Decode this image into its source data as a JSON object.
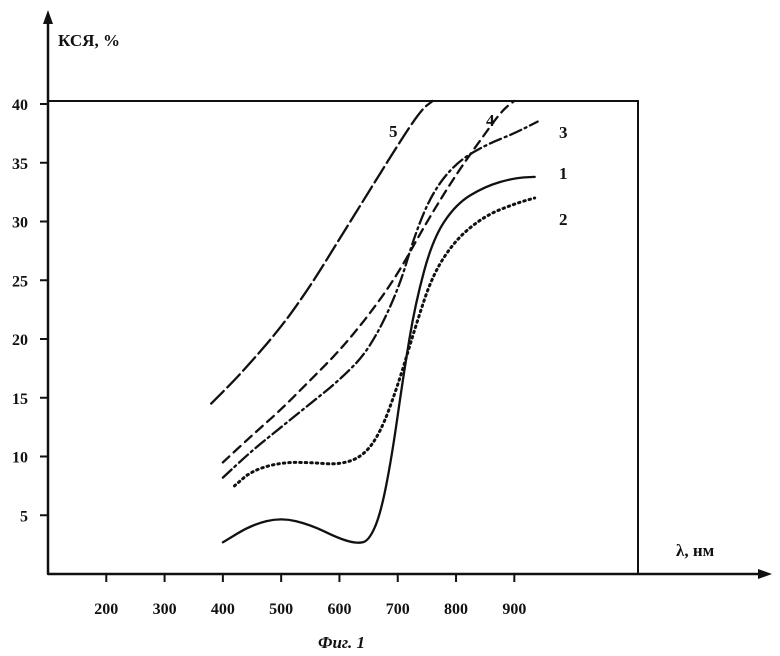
{
  "chart_data": {
    "type": "line",
    "ylabel": "КСЯ, %",
    "xlabel": "λ, нм",
    "caption": "Фиг. 1",
    "xlim": [
      100,
      1000
    ],
    "ylim": [
      0,
      40
    ],
    "x_ticks": [
      200,
      300,
      400,
      500,
      600,
      700,
      800,
      900
    ],
    "y_ticks": [
      5,
      10,
      15,
      20,
      25,
      30,
      35,
      40
    ],
    "grid": false,
    "series": [
      {
        "name": "1",
        "style": "solid",
        "points": [
          [
            400,
            2.7
          ],
          [
            450,
            4.2
          ],
          [
            500,
            4.8
          ],
          [
            550,
            4.2
          ],
          [
            600,
            3.0
          ],
          [
            630,
            2.6
          ],
          [
            650,
            2.8
          ],
          [
            670,
            5.0
          ],
          [
            690,
            10.0
          ],
          [
            710,
            17.0
          ],
          [
            730,
            23.0
          ],
          [
            760,
            28.5
          ],
          [
            800,
            31.5
          ],
          [
            850,
            33.0
          ],
          [
            900,
            33.7
          ],
          [
            935,
            33.8
          ]
        ]
      },
      {
        "name": "2",
        "style": "dotted",
        "points": [
          [
            420,
            7.5
          ],
          [
            450,
            8.8
          ],
          [
            500,
            9.5
          ],
          [
            550,
            9.5
          ],
          [
            600,
            9.3
          ],
          [
            640,
            10.0
          ],
          [
            670,
            12.0
          ],
          [
            700,
            16.0
          ],
          [
            730,
            21.0
          ],
          [
            760,
            25.5
          ],
          [
            800,
            28.5
          ],
          [
            850,
            30.5
          ],
          [
            900,
            31.5
          ],
          [
            935,
            32.0
          ]
        ]
      },
      {
        "name": "3",
        "style": "dash-dot",
        "points": [
          [
            400,
            8.2
          ],
          [
            450,
            10.5
          ],
          [
            500,
            12.5
          ],
          [
            550,
            14.5
          ],
          [
            600,
            16.5
          ],
          [
            650,
            19.0
          ],
          [
            700,
            24.0
          ],
          [
            730,
            29.0
          ],
          [
            760,
            32.5
          ],
          [
            800,
            35.0
          ],
          [
            850,
            36.5
          ],
          [
            900,
            37.5
          ],
          [
            940,
            38.5
          ]
        ]
      },
      {
        "name": "4",
        "style": "dashed",
        "points": [
          [
            400,
            9.5
          ],
          [
            450,
            11.8
          ],
          [
            500,
            14.0
          ],
          [
            550,
            16.5
          ],
          [
            600,
            19.0
          ],
          [
            650,
            22.0
          ],
          [
            700,
            25.5
          ],
          [
            750,
            30.0
          ],
          [
            800,
            34.0
          ],
          [
            850,
            37.5
          ],
          [
            880,
            39.5
          ],
          [
            900,
            40.5
          ]
        ]
      },
      {
        "name": "5",
        "style": "long-dash",
        "points": [
          [
            380,
            14.5
          ],
          [
            430,
            17.0
          ],
          [
            500,
            21.0
          ],
          [
            550,
            24.5
          ],
          [
            600,
            28.5
          ],
          [
            650,
            32.5
          ],
          [
            700,
            36.5
          ],
          [
            740,
            39.5
          ],
          [
            760,
            41.0
          ]
        ]
      }
    ]
  }
}
